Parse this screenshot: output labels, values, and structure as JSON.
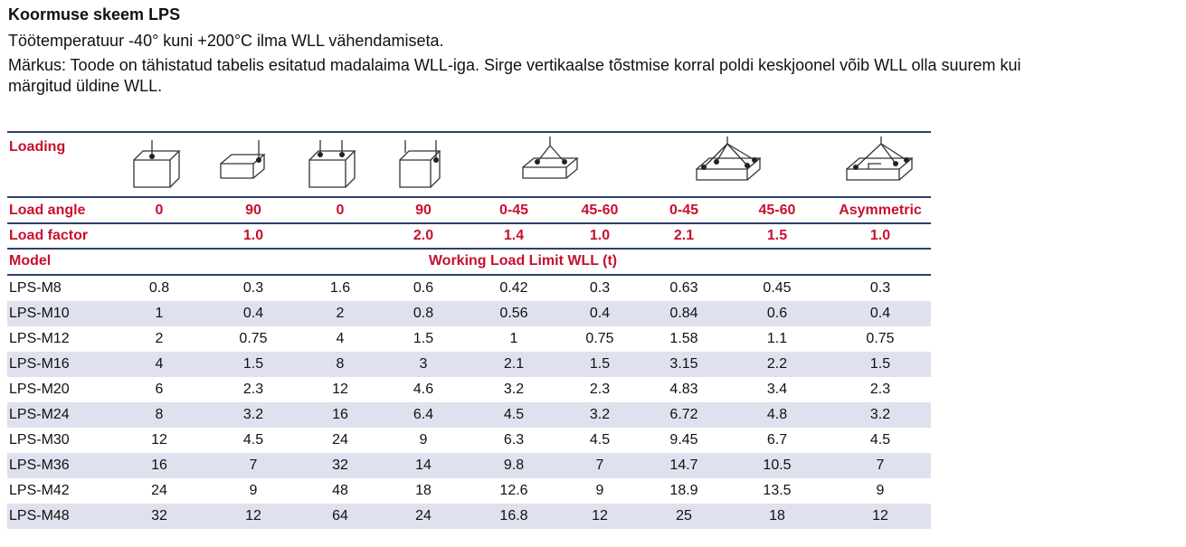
{
  "title": "Koormuse skeem LPS",
  "temperature_note": "Töötemperatuur -40° kuni +200°C ilma WLL vähendamiseta.",
  "remark_line1": "Märkus: Toode on tähistatud tabelis esitatud madalaima WLL-iga. Sirge vertikaalse tõstmise korral poldi keskjoonel võib WLL olla suurem kui",
  "remark_line2": "märgitud üldine WLL.",
  "colors": {
    "accent": "#c8102e",
    "rule": "#2f3f6e",
    "stripe": "#dfe2ee"
  },
  "table": {
    "loading_label": "Loading",
    "loading_icons": [
      "cube-single-top-icon",
      "flat-box-side-icon",
      "cube-double-top-icon",
      "cube-side-icon",
      "plate-two-leg-icon",
      "plate-two-leg-wide-icon",
      "plate-four-leg-icon",
      "plate-four-leg-wide-icon",
      "plate-asymmetric-icon"
    ],
    "load_angle_label": "Load angle",
    "load_angles": [
      "0",
      "90",
      "0",
      "90",
      "0-45",
      "45-60",
      "0-45",
      "45-60",
      "Asymmetric"
    ],
    "load_factor_label": "Load factor",
    "load_factors": [
      "",
      "1.0",
      "",
      "2.0",
      "1.4",
      "1.0",
      "2.1",
      "1.5",
      "1.0"
    ],
    "model_label": "Model",
    "wll_header": "Working Load Limit WLL (t)",
    "rows": [
      {
        "model": "LPS-M8",
        "values": [
          "0.8",
          "0.3",
          "1.6",
          "0.6",
          "0.42",
          "0.3",
          "0.63",
          "0.45",
          "0.3"
        ]
      },
      {
        "model": "LPS-M10",
        "values": [
          "1",
          "0.4",
          "2",
          "0.8",
          "0.56",
          "0.4",
          "0.84",
          "0.6",
          "0.4"
        ]
      },
      {
        "model": "LPS-M12",
        "values": [
          "2",
          "0.75",
          "4",
          "1.5",
          "1",
          "0.75",
          "1.58",
          "1.1",
          "0.75"
        ]
      },
      {
        "model": "LPS-M16",
        "values": [
          "4",
          "1.5",
          "8",
          "3",
          "2.1",
          "1.5",
          "3.15",
          "2.2",
          "1.5"
        ]
      },
      {
        "model": "LPS-M20",
        "values": [
          "6",
          "2.3",
          "12",
          "4.6",
          "3.2",
          "2.3",
          "4.83",
          "3.4",
          "2.3"
        ]
      },
      {
        "model": "LPS-M24",
        "values": [
          "8",
          "3.2",
          "16",
          "6.4",
          "4.5",
          "3.2",
          "6.72",
          "4.8",
          "3.2"
        ]
      },
      {
        "model": "LPS-M30",
        "values": [
          "12",
          "4.5",
          "24",
          "9",
          "6.3",
          "4.5",
          "9.45",
          "6.7",
          "4.5"
        ]
      },
      {
        "model": "LPS-M36",
        "values": [
          "16",
          "7",
          "32",
          "14",
          "9.8",
          "7",
          "14.7",
          "10.5",
          "7"
        ]
      },
      {
        "model": "LPS-M42",
        "values": [
          "24",
          "9",
          "48",
          "18",
          "12.6",
          "9",
          "18.9",
          "13.5",
          "9"
        ]
      },
      {
        "model": "LPS-M48",
        "values": [
          "32",
          "12",
          "64",
          "24",
          "16.8",
          "12",
          "25",
          "18",
          "12"
        ]
      }
    ]
  }
}
